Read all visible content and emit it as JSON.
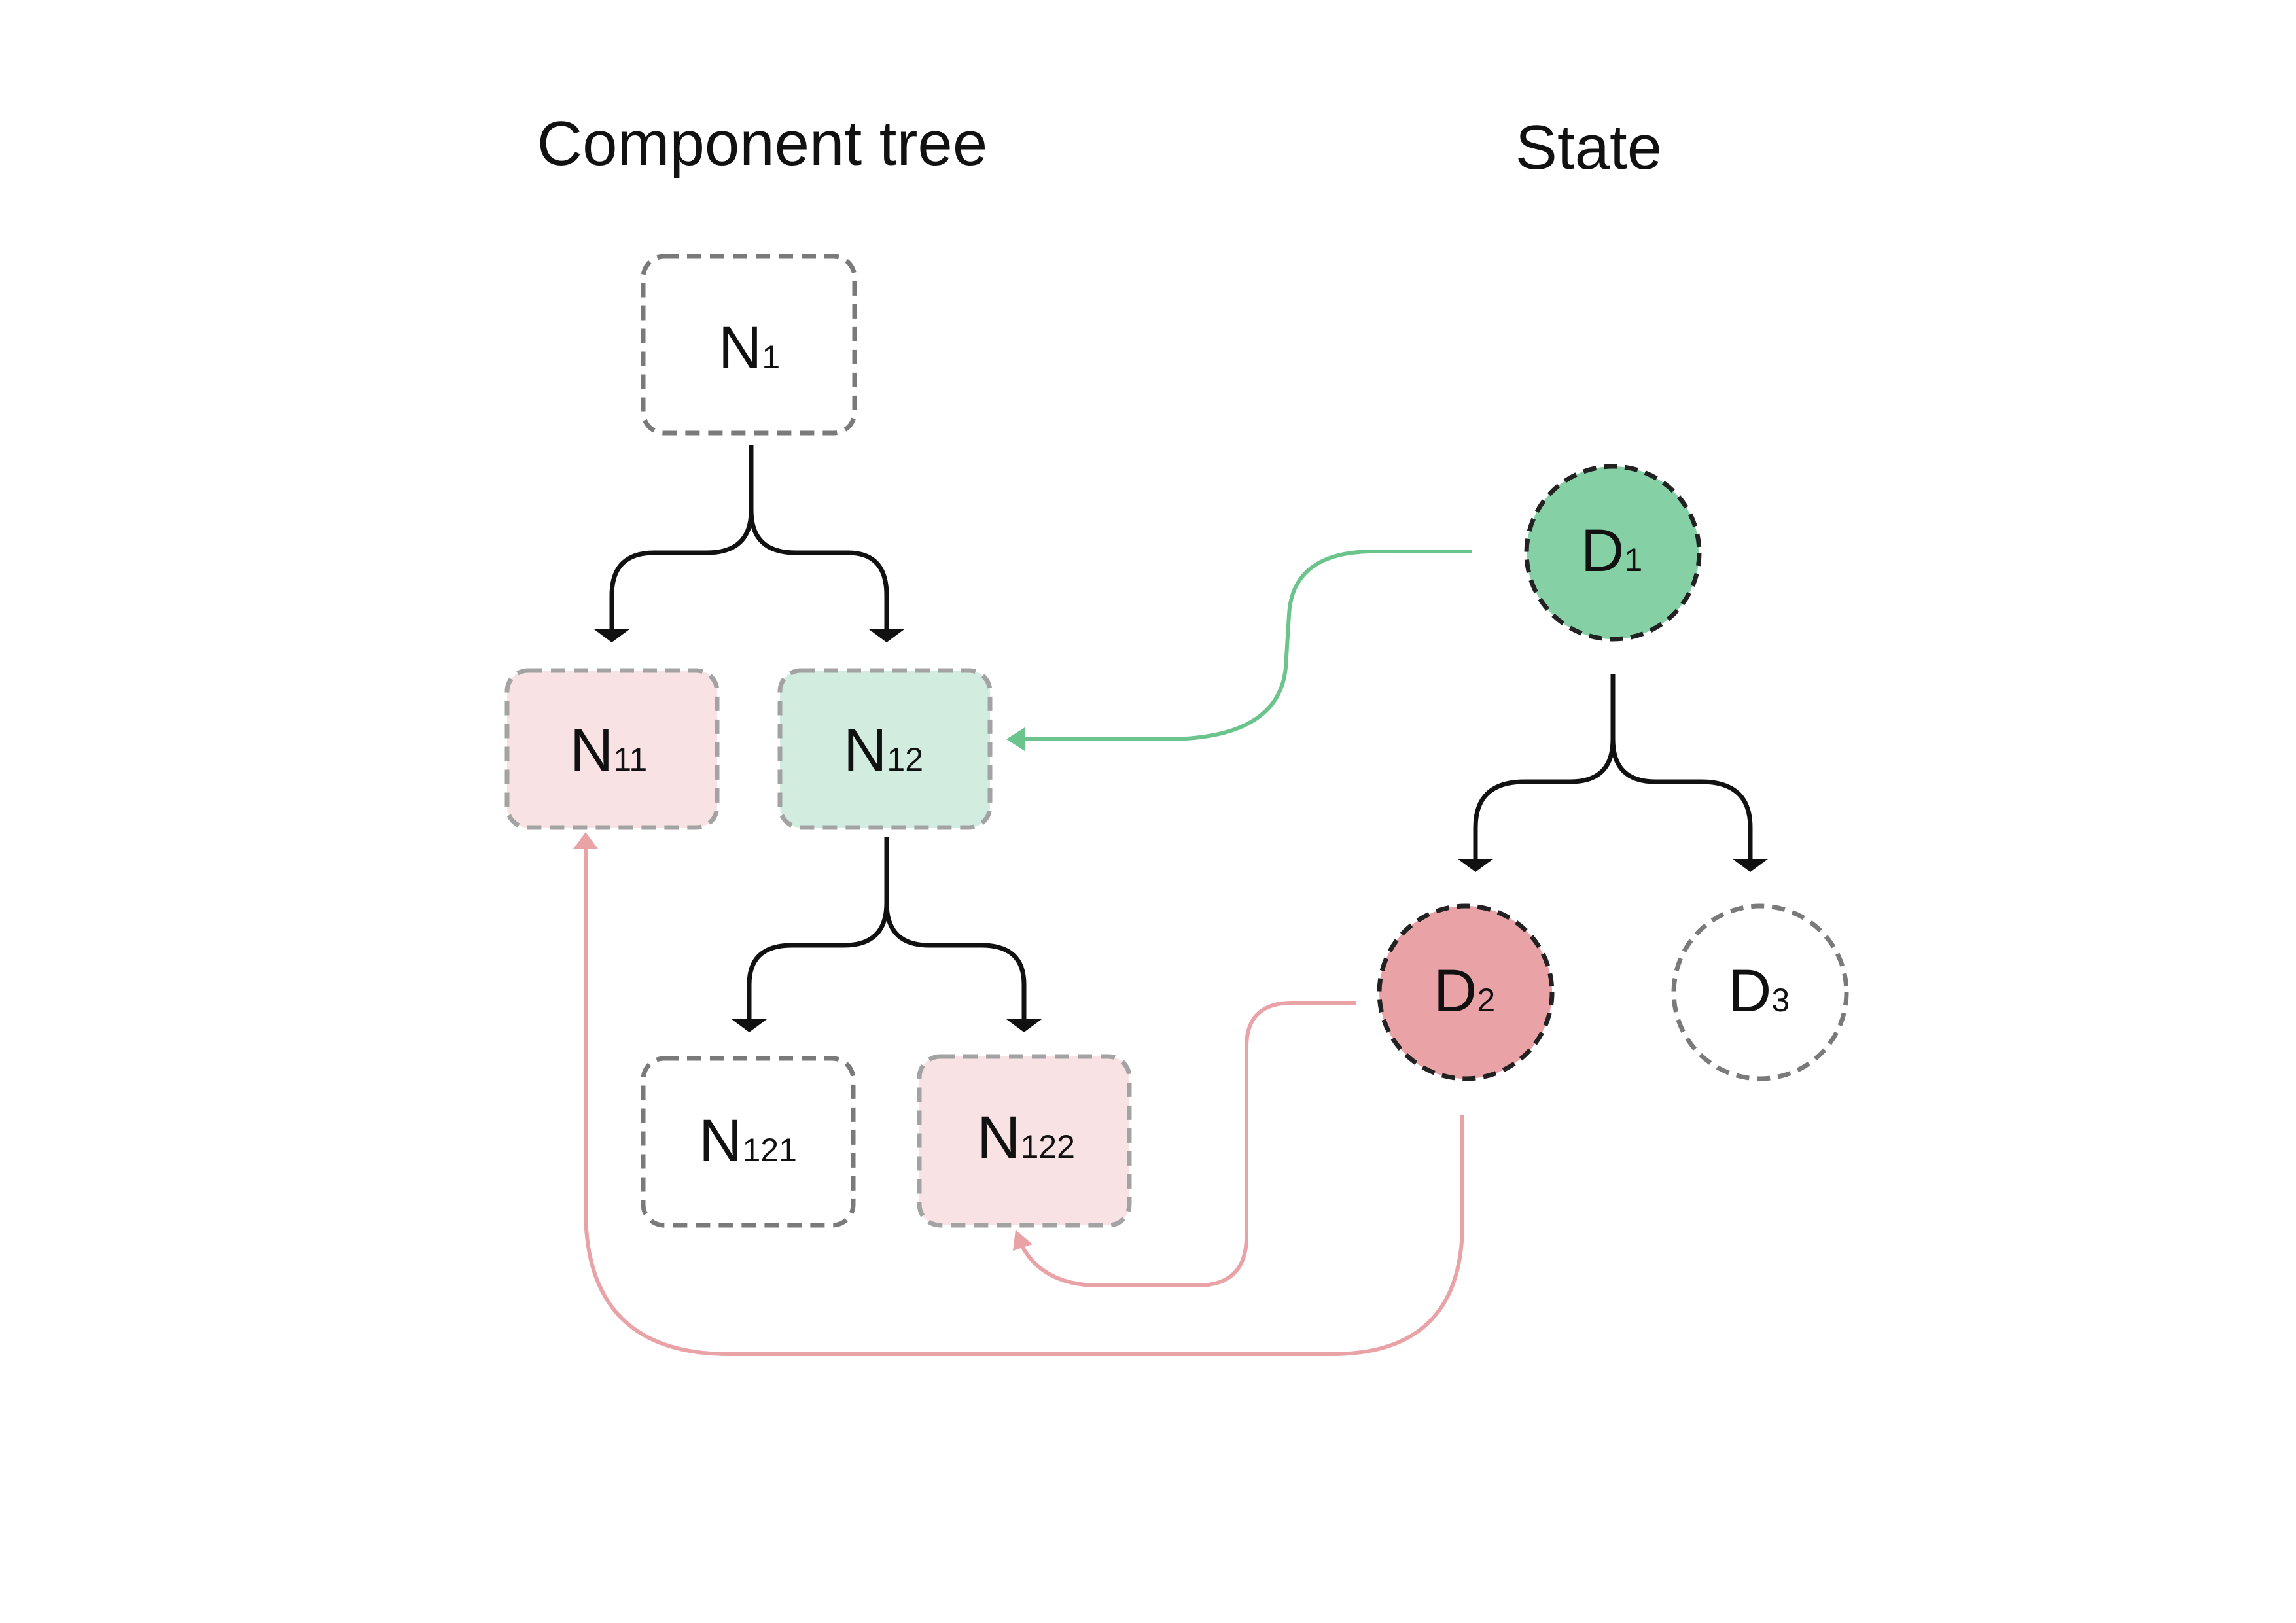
{
  "headings": {
    "component_tree": "Component tree",
    "state": "State"
  },
  "colors": {
    "green_fill": "#d2ede0",
    "green_strong": "#85d0a4",
    "green_link": "#6cc48d",
    "red_fill": "#f8e2e3",
    "red_strong": "#e9a3a6",
    "red_link": "#e9a3a6",
    "neutral_border": "#7a7a7a",
    "dark_border": "#222222",
    "edge": "#111111"
  },
  "component_tree": {
    "nodes": {
      "n1": {
        "letter": "N",
        "sub": "1"
      },
      "n11": {
        "letter": "N",
        "sub": "11"
      },
      "n12": {
        "letter": "N",
        "sub": "12"
      },
      "n121": {
        "letter": "N",
        "sub": "121"
      },
      "n122": {
        "letter": "N",
        "sub": "122"
      }
    }
  },
  "state_tree": {
    "nodes": {
      "d1": {
        "letter": "D",
        "sub": "1"
      },
      "d2": {
        "letter": "D",
        "sub": "2"
      },
      "d3": {
        "letter": "D",
        "sub": "3"
      }
    }
  }
}
